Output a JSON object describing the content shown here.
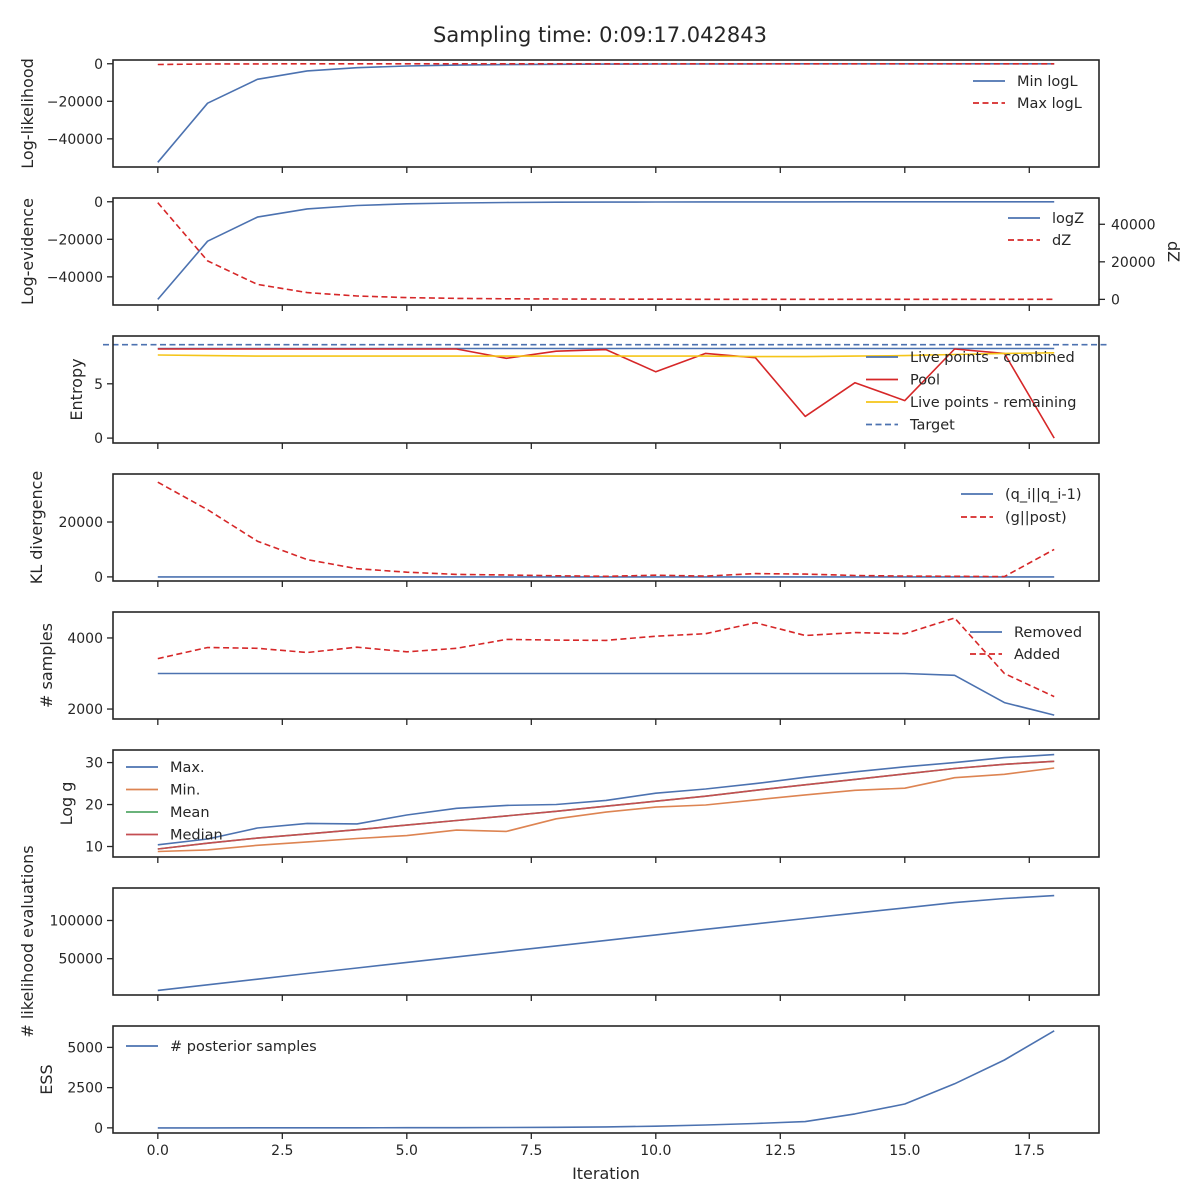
{
  "figure": {
    "title": "Sampling time: 0:09:17.042843",
    "xlabel": "Iteration"
  },
  "colors": {
    "blue": "#4c72b0",
    "red": "#d62728",
    "orange": "#dd8452",
    "green": "#55a868",
    "median": "#c44e52",
    "yellow": "#f5c518",
    "dash_red": "#d62728"
  },
  "chart_data": [
    {
      "type": "line",
      "id": "loglikelihood",
      "ylabel": "Log-likelihood",
      "x": [
        0,
        1,
        2,
        3,
        4,
        5,
        6,
        7,
        8,
        9,
        10,
        11,
        12,
        13,
        14,
        15,
        16,
        17,
        18
      ],
      "ylim": [
        -55000,
        2000
      ],
      "yticks": [
        0,
        -20000,
        -40000
      ],
      "ytick_labels": [
        "0",
        "−20000",
        "−40000"
      ],
      "legend": "upper-right",
      "series": [
        {
          "name": "Min logL",
          "color": "blue",
          "dash": false,
          "values": [
            -52500,
            -21000,
            -8300,
            -3800,
            -2100,
            -1200,
            -700,
            -450,
            -300,
            -200,
            -140,
            -100,
            -70,
            -50,
            -40,
            -30,
            -25,
            -20,
            -15
          ]
        },
        {
          "name": "Max logL",
          "color": "red",
          "dash": true,
          "values": [
            -400,
            -150,
            -80,
            -50,
            -35,
            -25,
            -20,
            -15,
            -12,
            -10,
            -8,
            -7,
            -6,
            -5,
            -5,
            -4,
            -4,
            -3,
            -3
          ]
        }
      ]
    },
    {
      "type": "line",
      "id": "logevidence",
      "ylabel": "Log-evidence",
      "ylabel_right": "dZ",
      "x": [
        0,
        1,
        2,
        3,
        4,
        5,
        6,
        7,
        8,
        9,
        10,
        11,
        12,
        13,
        14,
        15,
        16,
        17,
        18
      ],
      "ylim": [
        -55000,
        2000
      ],
      "yticks": [
        0,
        -20000,
        -40000
      ],
      "ytick_labels": [
        "0",
        "−20000",
        "−40000"
      ],
      "ylim_right": [
        -3000,
        54000
      ],
      "yticks_right": [
        0,
        20000,
        40000
      ],
      "ytick_labels_right": [
        "0",
        "20000",
        "40000"
      ],
      "legend": "upper-right",
      "series": [
        {
          "name": "logZ",
          "color": "blue",
          "dash": false,
          "axis": "left",
          "values": [
            -52000,
            -21000,
            -8200,
            -3800,
            -2000,
            -1100,
            -650,
            -400,
            -250,
            -170,
            -120,
            -90,
            -70,
            -55,
            -45,
            -35,
            -30,
            -25,
            -20
          ]
        },
        {
          "name": "dZ",
          "color": "red",
          "dash": true,
          "axis": "right",
          "values": [
            51500,
            20500,
            8000,
            3600,
            1800,
            950,
            500,
            300,
            180,
            120,
            80,
            60,
            45,
            35,
            28,
            22,
            18,
            15,
            12
          ]
        }
      ]
    },
    {
      "type": "line",
      "id": "entropy",
      "ylabel": "Entropy",
      "x": [
        0,
        1,
        2,
        3,
        4,
        5,
        6,
        7,
        8,
        9,
        10,
        11,
        12,
        13,
        14,
        15,
        16,
        17,
        18
      ],
      "ylim": [
        -0.45,
        9.4
      ],
      "yticks": [
        0,
        5
      ],
      "ytick_labels": [
        "0",
        "5"
      ],
      "legend": "lower-right",
      "target": {
        "name": "Target",
        "value": 8.6,
        "color": "blue"
      },
      "series": [
        {
          "name": "Live points - combined",
          "color": "blue",
          "dash": false,
          "values": [
            8.25,
            8.25,
            8.25,
            8.25,
            8.25,
            8.25,
            8.25,
            8.25,
            8.25,
            8.25,
            8.25,
            8.25,
            8.25,
            8.25,
            8.25,
            8.25,
            8.25,
            8.25,
            8.25
          ]
        },
        {
          "name": "Pool",
          "color": "red",
          "dash": false,
          "values": [
            8.2,
            8.2,
            8.2,
            8.2,
            8.2,
            8.2,
            8.2,
            7.35,
            8.0,
            8.15,
            6.1,
            7.8,
            7.4,
            2.0,
            5.1,
            3.45,
            8.2,
            7.8,
            0.0
          ]
        },
        {
          "name": "Live points - remaining",
          "color": "yellow",
          "dash": false,
          "values": [
            7.65,
            7.6,
            7.55,
            7.55,
            7.55,
            7.55,
            7.55,
            7.55,
            7.55,
            7.55,
            7.55,
            7.55,
            7.5,
            7.5,
            7.55,
            7.6,
            7.7,
            7.8,
            7.85
          ]
        }
      ]
    },
    {
      "type": "line",
      "id": "kl",
      "ylabel": "KL divergence",
      "x": [
        0,
        1,
        2,
        3,
        4,
        5,
        6,
        7,
        8,
        9,
        10,
        11,
        12,
        13,
        14,
        15,
        16,
        17,
        18
      ],
      "ylim": [
        -1500,
        37500
      ],
      "yticks": [
        0,
        20000
      ],
      "ytick_labels": [
        "0",
        "20000"
      ],
      "legend": "upper-right",
      "series": [
        {
          "name": "(q_i||q_i-1)",
          "color": "blue",
          "dash": false,
          "values": [
            0,
            0,
            0,
            0,
            0,
            0,
            0,
            0,
            0,
            0,
            0,
            0,
            0,
            0,
            0,
            0,
            0,
            0,
            0
          ]
        },
        {
          "name": "(g||post)",
          "color": "red",
          "dash": true,
          "values": [
            34500,
            24500,
            13000,
            6300,
            3000,
            1700,
            900,
            700,
            400,
            200,
            600,
            300,
            1200,
            1000,
            500,
            300,
            200,
            100,
            10000
          ]
        }
      ]
    },
    {
      "type": "line",
      "id": "samples",
      "ylabel": "# samples",
      "x": [
        0,
        1,
        2,
        3,
        4,
        5,
        6,
        7,
        8,
        9,
        10,
        11,
        12,
        13,
        14,
        15,
        16,
        17,
        18
      ],
      "ylim": [
        1720,
        4730
      ],
      "yticks": [
        2000,
        4000
      ],
      "ytick_labels": [
        "2000",
        "4000"
      ],
      "legend": "upper-right",
      "series": [
        {
          "name": "Removed",
          "color": "blue",
          "dash": false,
          "values": [
            3000,
            3000,
            3000,
            3000,
            3000,
            3000,
            3000,
            3000,
            3000,
            3000,
            3000,
            3000,
            3000,
            3000,
            3000,
            3000,
            2950,
            2180,
            1830
          ]
        },
        {
          "name": "Added",
          "color": "red",
          "dash": true,
          "values": [
            3420,
            3730,
            3710,
            3590,
            3740,
            3610,
            3710,
            3960,
            3940,
            3930,
            4050,
            4120,
            4430,
            4070,
            4150,
            4120,
            4560,
            3000,
            2350
          ]
        }
      ]
    },
    {
      "type": "line",
      "id": "logg",
      "ylabel": "Log g",
      "x": [
        0,
        1,
        2,
        3,
        4,
        5,
        6,
        7,
        8,
        9,
        10,
        11,
        12,
        13,
        14,
        15,
        16,
        17,
        18
      ],
      "ylim": [
        7.5,
        33.0
      ],
      "yticks": [
        10,
        20,
        30
      ],
      "ytick_labels": [
        "10",
        "20",
        "30"
      ],
      "legend": "upper-left",
      "series": [
        {
          "name": "Max.",
          "color": "blue",
          "dash": false,
          "values": [
            10.4,
            11.8,
            14.4,
            15.5,
            15.4,
            17.5,
            19.1,
            19.8,
            20.0,
            21.0,
            22.7,
            23.7,
            25.0,
            26.5,
            27.8,
            29.0,
            30.0,
            31.2,
            31.9
          ]
        },
        {
          "name": "Min.",
          "color": "orange",
          "dash": false,
          "values": [
            8.8,
            9.2,
            10.3,
            11.1,
            11.9,
            12.6,
            13.9,
            13.6,
            16.6,
            18.2,
            19.4,
            19.9,
            21.1,
            22.3,
            23.4,
            23.9,
            26.4,
            27.2,
            28.7
          ]
        },
        {
          "name": "Mean",
          "color": "green",
          "dash": false,
          "values": [
            9.4,
            10.8,
            12.0,
            13.0,
            14.0,
            15.1,
            16.2,
            17.3,
            18.4,
            19.6,
            20.8,
            22.0,
            23.4,
            24.7,
            26.0,
            27.3,
            28.6,
            29.6,
            30.3
          ]
        },
        {
          "name": "Median",
          "color": "median",
          "dash": false,
          "values": [
            9.4,
            10.8,
            12.0,
            13.0,
            14.0,
            15.1,
            16.2,
            17.3,
            18.4,
            19.6,
            20.8,
            22.0,
            23.4,
            24.7,
            26.0,
            27.3,
            28.6,
            29.6,
            30.3
          ]
        }
      ]
    },
    {
      "type": "line",
      "id": "likelihood-evals",
      "ylabel": "# likelihood evaluations",
      "x": [
        0,
        1,
        2,
        3,
        4,
        5,
        6,
        7,
        8,
        9,
        10,
        11,
        12,
        13,
        14,
        15,
        16,
        17,
        18
      ],
      "ylim": [
        2500,
        142500
      ],
      "yticks": [
        50000,
        100000
      ],
      "ytick_labels": [
        "50000",
        "100000"
      ],
      "legend": "none",
      "series": [
        {
          "name": "",
          "color": "blue",
          "dash": false,
          "values": [
            8500,
            15900,
            23200,
            30600,
            37800,
            45100,
            52400,
            59600,
            66800,
            74000,
            81200,
            88400,
            95500,
            102600,
            109500,
            116400,
            123400,
            128700,
            132600
          ]
        }
      ]
    },
    {
      "type": "line",
      "id": "ess",
      "ylabel": "ESS",
      "x": [
        0,
        1,
        2,
        3,
        4,
        5,
        6,
        7,
        8,
        9,
        10,
        11,
        12,
        13,
        14,
        15,
        16,
        17,
        18
      ],
      "ylim": [
        -320,
        6330
      ],
      "yticks": [
        0,
        2500,
        5000
      ],
      "ytick_labels": [
        "0",
        "2500",
        "5000"
      ],
      "legend": "upper-left",
      "series": [
        {
          "name": "# posterior samples",
          "color": "blue",
          "dash": false,
          "values": [
            0,
            0,
            1,
            2,
            4,
            7,
            12,
            20,
            35,
            60,
            100,
            180,
            270,
            390,
            870,
            1480,
            2740,
            4220,
            6030
          ]
        }
      ]
    }
  ],
  "xaxis": {
    "ticks": [
      0.0,
      2.5,
      5.0,
      7.5,
      10.0,
      12.5,
      15.0,
      17.5
    ],
    "tick_labels": [
      "0.0",
      "2.5",
      "5.0",
      "7.5",
      "10.0",
      "12.5",
      "15.0",
      "17.5"
    ],
    "xlim": [
      -0.9,
      18.9
    ]
  }
}
